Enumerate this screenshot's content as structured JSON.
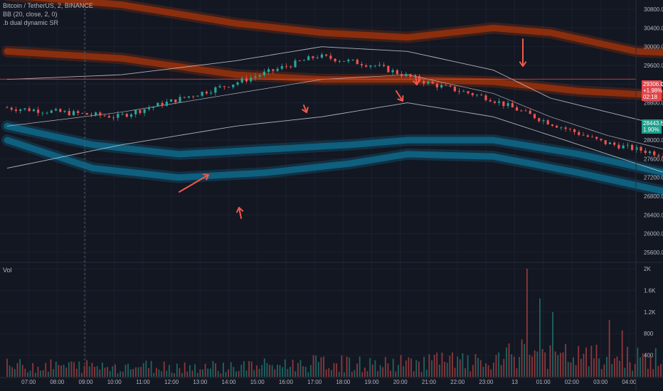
{
  "legend": {
    "symbol": "Bitcoin / TetherUS, 2, BINANCE",
    "bb": "BB (20, close, 2, 0)",
    "sr": ".b dual dynamic SR",
    "vol": "Vol"
  },
  "price_tags": {
    "red": {
      "price": "29306.00",
      "change": "+1.98%",
      "time": "02:18",
      "color": "#e0464c"
    },
    "teal": {
      "price": "28443.64",
      "change": "1.90%",
      "color": "#1f9e8a"
    }
  },
  "colors": {
    "background": "#131722",
    "up": "#26a69a",
    "down": "#ef5350",
    "upper_band": "#8a2e0e",
    "lower_band": "#0f5f7e",
    "bb_line": "#c9ccd4",
    "arrow": "#f2584a",
    "grid": "#1c2030",
    "axis_text": "#b2b5be"
  },
  "chart_data": [
    {
      "type": "candlestick",
      "title": "Bitcoin / TetherUS, 2, BINANCE",
      "ylim": [
        25400,
        31000
      ],
      "price_ticks": [
        25600,
        26000,
        26400,
        26800,
        27200,
        27600,
        28000,
        28400,
        28800,
        29200,
        29600,
        30000,
        30400,
        30800
      ],
      "x_ticks": [
        "07:00",
        "08:00",
        "09:00",
        "10:00",
        "11:00",
        "12:00",
        "13:00",
        "14:00",
        "15:00",
        "16:00",
        "17:00",
        "18:00",
        "19:00",
        "20:00",
        "21:00",
        "22:00",
        "23:00",
        "13",
        "01:00",
        "02:00",
        "03:00",
        "04:00"
      ],
      "close_path": [
        [
          0,
          28700
        ],
        [
          4,
          28500
        ],
        [
          8,
          29200
        ],
        [
          11,
          29800
        ],
        [
          13,
          29600
        ],
        [
          15,
          29200
        ],
        [
          17,
          28900
        ],
        [
          19,
          28400
        ],
        [
          21,
          27950
        ],
        [
          23,
          27700
        ],
        [
          25,
          27650
        ],
        [
          27,
          27200
        ],
        [
          29,
          27100
        ],
        [
          31,
          27500
        ],
        [
          33,
          27150
        ],
        [
          34.5,
          26950
        ],
        [
          35,
          27900
        ],
        [
          37,
          28300
        ],
        [
          39,
          28000
        ],
        [
          41,
          27800
        ],
        [
          43,
          28050
        ],
        [
          45,
          28350
        ],
        [
          47,
          28250
        ],
        [
          49,
          28150
        ],
        [
          51,
          28600
        ],
        [
          53,
          28800
        ],
        [
          55,
          29350
        ],
        [
          57,
          28800
        ],
        [
          59,
          28650
        ],
        [
          61,
          28400
        ],
        [
          63,
          28200
        ],
        [
          65,
          28550
        ],
        [
          67,
          29000
        ],
        [
          69,
          29600
        ],
        [
          71,
          29700
        ],
        [
          73,
          29650
        ],
        [
          75,
          29200
        ],
        [
          77,
          29750
        ],
        [
          79,
          29500
        ],
        [
          81,
          29300
        ],
        [
          83,
          28800
        ],
        [
          85,
          28500
        ]
      ],
      "bollinger": {
        "upper": [
          [
            0,
            29300
          ],
          [
            4,
            29400
          ],
          [
            8,
            29700
          ],
          [
            11,
            30000
          ],
          [
            14,
            29900
          ],
          [
            17,
            29500
          ],
          [
            19,
            28900
          ],
          [
            21,
            28600
          ],
          [
            23,
            28300
          ],
          [
            26,
            27900
          ],
          [
            29,
            27800
          ],
          [
            32,
            27900
          ],
          [
            34,
            27800
          ],
          [
            36,
            28600
          ],
          [
            39,
            28600
          ],
          [
            42,
            28350
          ],
          [
            45,
            28500
          ],
          [
            48,
            28500
          ],
          [
            51,
            28800
          ],
          [
            53,
            29000
          ],
          [
            55,
            29450
          ],
          [
            58,
            29200
          ],
          [
            61,
            28750
          ],
          [
            64,
            28700
          ],
          [
            67,
            29350
          ],
          [
            69,
            29800
          ],
          [
            72,
            29850
          ],
          [
            75,
            29900
          ],
          [
            78,
            29950
          ],
          [
            81,
            29750
          ],
          [
            83,
            29400
          ],
          [
            85,
            29000
          ]
        ],
        "basis": [
          [
            0,
            28300
          ],
          [
            4,
            28600
          ],
          [
            8,
            29000
          ],
          [
            11,
            29300
          ],
          [
            14,
            29400
          ],
          [
            17,
            29000
          ],
          [
            19,
            28500
          ],
          [
            21,
            28100
          ],
          [
            23,
            27800
          ],
          [
            26,
            27500
          ],
          [
            29,
            27350
          ],
          [
            32,
            27400
          ],
          [
            34,
            27350
          ],
          [
            36,
            27700
          ],
          [
            39,
            27950
          ],
          [
            42,
            28000
          ],
          [
            45,
            28100
          ],
          [
            48,
            28200
          ],
          [
            51,
            28300
          ],
          [
            53,
            28500
          ],
          [
            55,
            28800
          ],
          [
            58,
            28800
          ],
          [
            61,
            28500
          ],
          [
            64,
            28350
          ],
          [
            67,
            28700
          ],
          [
            69,
            29050
          ],
          [
            72,
            29300
          ],
          [
            75,
            29400
          ],
          [
            78,
            29500
          ],
          [
            81,
            29350
          ],
          [
            83,
            29000
          ],
          [
            85,
            28800
          ]
        ],
        "lower": [
          [
            0,
            27400
          ],
          [
            4,
            27900
          ],
          [
            8,
            28300
          ],
          [
            11,
            28500
          ],
          [
            14,
            28800
          ],
          [
            17,
            28500
          ],
          [
            19,
            28100
          ],
          [
            21,
            27700
          ],
          [
            23,
            27300
          ],
          [
            26,
            27000
          ],
          [
            29,
            26800
          ],
          [
            32,
            26850
          ],
          [
            34,
            26800
          ],
          [
            36,
            26650
          ],
          [
            39,
            27100
          ],
          [
            42,
            27600
          ],
          [
            45,
            27700
          ],
          [
            48,
            27900
          ],
          [
            51,
            27900
          ],
          [
            53,
            28000
          ],
          [
            55,
            28150
          ],
          [
            58,
            28350
          ],
          [
            61,
            28250
          ],
          [
            64,
            28000
          ],
          [
            67,
            28000
          ],
          [
            69,
            28200
          ],
          [
            72,
            28700
          ],
          [
            75,
            28900
          ],
          [
            78,
            29000
          ],
          [
            81,
            28900
          ],
          [
            83,
            28600
          ],
          [
            85,
            28500
          ]
        ]
      },
      "upper_band_outer": [
        [
          0,
          31100
        ],
        [
          4,
          30900
        ],
        [
          8,
          30500
        ],
        [
          11,
          30300
        ],
        [
          14,
          30200
        ],
        [
          17,
          30400
        ],
        [
          19,
          30300
        ],
        [
          22,
          29900
        ],
        [
          26,
          29800
        ],
        [
          29,
          29700
        ],
        [
          33,
          29500
        ],
        [
          35,
          29700
        ],
        [
          37,
          30500
        ],
        [
          40,
          30550
        ],
        [
          42,
          30100
        ],
        [
          45,
          29600
        ],
        [
          48,
          29500
        ],
        [
          51,
          29400
        ],
        [
          55,
          29400
        ],
        [
          59,
          29500
        ],
        [
          63,
          29700
        ],
        [
          67,
          29900
        ],
        [
          70,
          30500
        ],
        [
          73,
          30600
        ],
        [
          76,
          30700
        ],
        [
          79,
          30700
        ],
        [
          82,
          30600
        ],
        [
          85,
          30400
        ]
      ],
      "upper_band_inner": [
        [
          0,
          29900
        ],
        [
          4,
          29750
        ],
        [
          8,
          29400
        ],
        [
          11,
          29300
        ],
        [
          14,
          29300
        ],
        [
          17,
          29250
        ],
        [
          20,
          29050
        ],
        [
          23,
          28950
        ],
        [
          26,
          28900
        ],
        [
          29,
          28900
        ],
        [
          33,
          28700
        ],
        [
          35,
          28700
        ],
        [
          37,
          29100
        ],
        [
          39,
          29300
        ],
        [
          42,
          29200
        ],
        [
          45,
          28900
        ],
        [
          48,
          28800
        ],
        [
          51,
          28800
        ],
        [
          55,
          29000
        ],
        [
          59,
          29200
        ],
        [
          63,
          29400
        ],
        [
          67,
          29500
        ],
        [
          70,
          29700
        ],
        [
          73,
          29900
        ],
        [
          76,
          29900
        ],
        [
          79,
          30000
        ],
        [
          82,
          29900
        ],
        [
          85,
          29500
        ]
      ],
      "lower_band_inner": [
        [
          0,
          28300
        ],
        [
          3,
          27900
        ],
        [
          6,
          27700
        ],
        [
          9,
          27800
        ],
        [
          12,
          27900
        ],
        [
          14,
          28000
        ],
        [
          17,
          28000
        ],
        [
          20,
          27700
        ],
        [
          23,
          27300
        ],
        [
          26,
          26900
        ],
        [
          29,
          26650
        ],
        [
          33,
          26400
        ],
        [
          35,
          26150
        ],
        [
          37,
          26500
        ],
        [
          39,
          26800
        ],
        [
          42,
          27100
        ],
        [
          45,
          27250
        ],
        [
          48,
          27500
        ],
        [
          51,
          27600
        ],
        [
          54,
          27800
        ],
        [
          57,
          27900
        ],
        [
          61,
          27800
        ],
        [
          64,
          27650
        ],
        [
          67,
          27400
        ],
        [
          70,
          27600
        ],
        [
          73,
          28000
        ],
        [
          76,
          28250
        ],
        [
          79,
          28400
        ],
        [
          82,
          28500
        ],
        [
          85,
          28500
        ]
      ],
      "lower_band_outer": [
        [
          0,
          28000
        ],
        [
          3,
          27400
        ],
        [
          6,
          27200
        ],
        [
          9,
          27300
        ],
        [
          12,
          27500
        ],
        [
          14,
          27700
        ],
        [
          17,
          27650
        ],
        [
          20,
          27300
        ],
        [
          23,
          26900
        ],
        [
          26,
          26500
        ],
        [
          29,
          26200
        ],
        [
          33,
          26000
        ],
        [
          35,
          25650
        ],
        [
          37,
          25800
        ],
        [
          39,
          26000
        ],
        [
          42,
          26300
        ],
        [
          45,
          26600
        ],
        [
          48,
          26800
        ],
        [
          51,
          27000
        ],
        [
          54,
          27100
        ],
        [
          57,
          27100
        ],
        [
          61,
          26900
        ],
        [
          64,
          26600
        ],
        [
          67,
          26500
        ],
        [
          70,
          26900
        ],
        [
          73,
          27400
        ],
        [
          76,
          27700
        ],
        [
          79,
          27800
        ],
        [
          82,
          27700
        ],
        [
          85,
          27550
        ]
      ],
      "horizontal_line": 29306
    },
    {
      "type": "bar",
      "series": [
        {
          "name": "Vol"
        }
      ],
      "ylim": [
        0,
        2000
      ],
      "y_ticks": [
        "400",
        "800",
        "1.2K",
        "1.6K",
        "2K"
      ],
      "profile": [
        [
          0,
          260
        ],
        [
          8,
          240
        ],
        [
          11,
          320
        ],
        [
          13,
          280
        ],
        [
          15,
          380
        ],
        [
          17,
          300
        ],
        [
          18,
          620
        ],
        [
          19,
          480
        ],
        [
          21,
          460
        ],
        [
          23,
          420
        ],
        [
          25,
          320
        ],
        [
          27,
          300
        ],
        [
          29,
          260
        ],
        [
          31,
          280
        ],
        [
          33,
          320
        ],
        [
          34.5,
          460
        ],
        [
          35,
          520
        ],
        [
          37,
          350
        ],
        [
          39,
          280
        ],
        [
          42,
          250
        ],
        [
          45,
          240
        ],
        [
          48,
          230
        ],
        [
          51,
          260
        ],
        [
          55,
          300
        ],
        [
          58,
          250
        ],
        [
          61,
          220
        ],
        [
          64,
          250
        ],
        [
          67,
          290
        ],
        [
          70,
          320
        ],
        [
          73,
          260
        ],
        [
          76,
          240
        ],
        [
          79,
          250
        ],
        [
          82,
          220
        ],
        [
          85,
          200
        ]
      ],
      "spikes": [
        [
          18.2,
          2000
        ],
        [
          18.6,
          1450
        ],
        [
          19.1,
          1200
        ],
        [
          21.1,
          1050
        ],
        [
          21.5,
          860
        ],
        [
          26.3,
          720
        ],
        [
          34.6,
          1050
        ],
        [
          35.2,
          800
        ],
        [
          39.8,
          720
        ],
        [
          43.2,
          640
        ],
        [
          55.4,
          560
        ],
        [
          68.2,
          560
        ]
      ]
    }
  ]
}
